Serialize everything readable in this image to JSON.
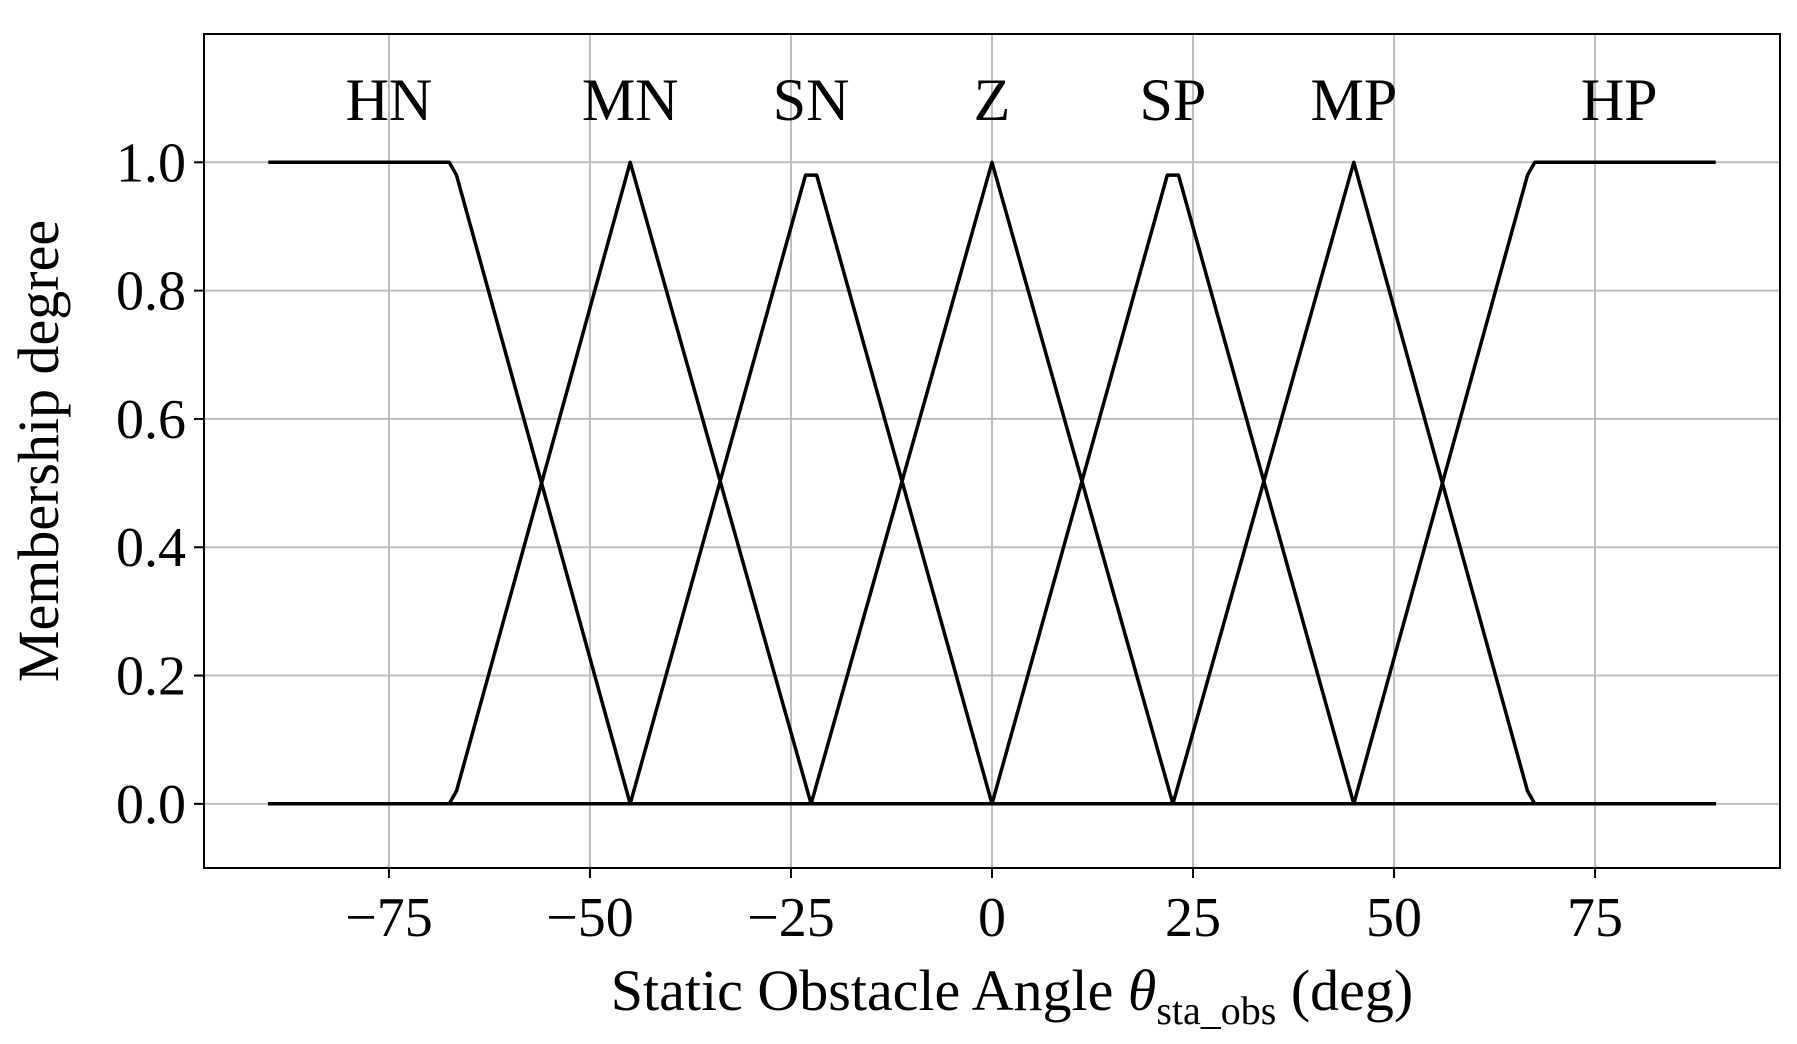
{
  "chart_data": {
    "type": "line",
    "xlabel": {
      "prefix": "Static Obstacle Angle ",
      "symbol": "θ",
      "subscript": "sta_obs",
      "suffix": " (deg)"
    },
    "ylabel": "Membership degree",
    "xlim": [
      -98,
      98
    ],
    "ylim": [
      -0.1,
      1.2
    ],
    "xticks": [
      -75,
      -50,
      -25,
      0,
      25,
      50,
      75
    ],
    "xtick_labels": [
      "−75",
      "−50",
      "−25",
      "0",
      "25",
      "50",
      "75"
    ],
    "yticks": [
      0.0,
      0.2,
      0.4,
      0.6,
      0.8,
      1.0
    ],
    "ytick_labels": [
      "0.0",
      "0.2",
      "0.4",
      "0.6",
      "0.8",
      "1.0"
    ],
    "grid": true,
    "series": [
      {
        "name": "HN",
        "x": [
          -90,
          -67.5,
          -66.6,
          -45,
          90
        ],
        "y": [
          1.0,
          1.0,
          0.98,
          0.0,
          0.0
        ]
      },
      {
        "name": "MN",
        "x": [
          -90,
          -67.5,
          -66.6,
          -45,
          -22.5,
          90
        ],
        "y": [
          0.0,
          0.0,
          0.02,
          1.0,
          0.0,
          0.0
        ]
      },
      {
        "name": "SN",
        "x": [
          -90,
          -45,
          -23.2,
          -21.8,
          0,
          90
        ],
        "y": [
          0.0,
          0.0,
          0.98,
          0.98,
          0.0,
          0.0
        ]
      },
      {
        "name": "Z",
        "x": [
          -90,
          -22.5,
          0,
          22.5,
          90
        ],
        "y": [
          0.0,
          0.0,
          1.0,
          0.0,
          0.0
        ]
      },
      {
        "name": "SP",
        "x": [
          -90,
          0,
          21.8,
          23.2,
          45,
          90
        ],
        "y": [
          0.0,
          0.0,
          0.98,
          0.98,
          0.0,
          0.0
        ]
      },
      {
        "name": "MP",
        "x": [
          -90,
          22.5,
          45,
          66.6,
          67.5,
          90
        ],
        "y": [
          0.0,
          0.0,
          1.0,
          0.02,
          0.0,
          0.0
        ]
      },
      {
        "name": "HP",
        "x": [
          -90,
          45,
          66.6,
          67.5,
          90
        ],
        "y": [
          0.0,
          0.0,
          0.98,
          1.0,
          1.0
        ]
      }
    ],
    "set_labels": [
      {
        "text": "HN",
        "x": -75
      },
      {
        "text": "MN",
        "x": -45
      },
      {
        "text": "SN",
        "x": -22.5
      },
      {
        "text": "Z",
        "x": 0
      },
      {
        "text": "SP",
        "x": 22.5
      },
      {
        "text": "MP",
        "x": 45
      },
      {
        "text": "HP",
        "x": 78
      }
    ],
    "set_label_y": 1.1,
    "line_color": "#000000",
    "grid_color": "#bdbdbd"
  }
}
